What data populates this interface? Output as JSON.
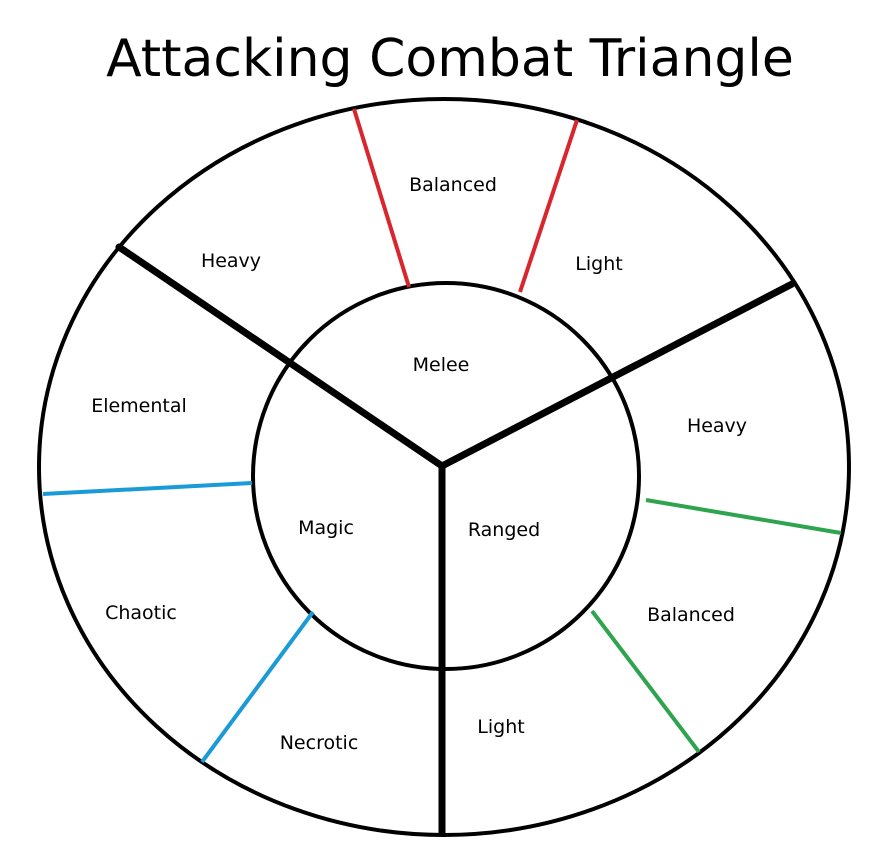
{
  "title": "Attacking Combat Triangle",
  "inner_labels": {
    "melee": "Melee",
    "magic": "Magic",
    "ranged": "Ranged"
  },
  "outer_labels": {
    "melee_heavy": "Heavy",
    "melee_balanced": "Balanced",
    "melee_light": "Light",
    "ranged_heavy": "Heavy",
    "ranged_balanced": "Balanced",
    "ranged_light": "Light",
    "magic_elemental": "Elemental",
    "magic_chaotic": "Chaotic",
    "magic_necrotic": "Necrotic"
  },
  "colors": {
    "outline": "#000000",
    "melee_divider": "#d9262d",
    "ranged_divider": "#2ea44f",
    "magic_divider": "#1a9ad6"
  }
}
